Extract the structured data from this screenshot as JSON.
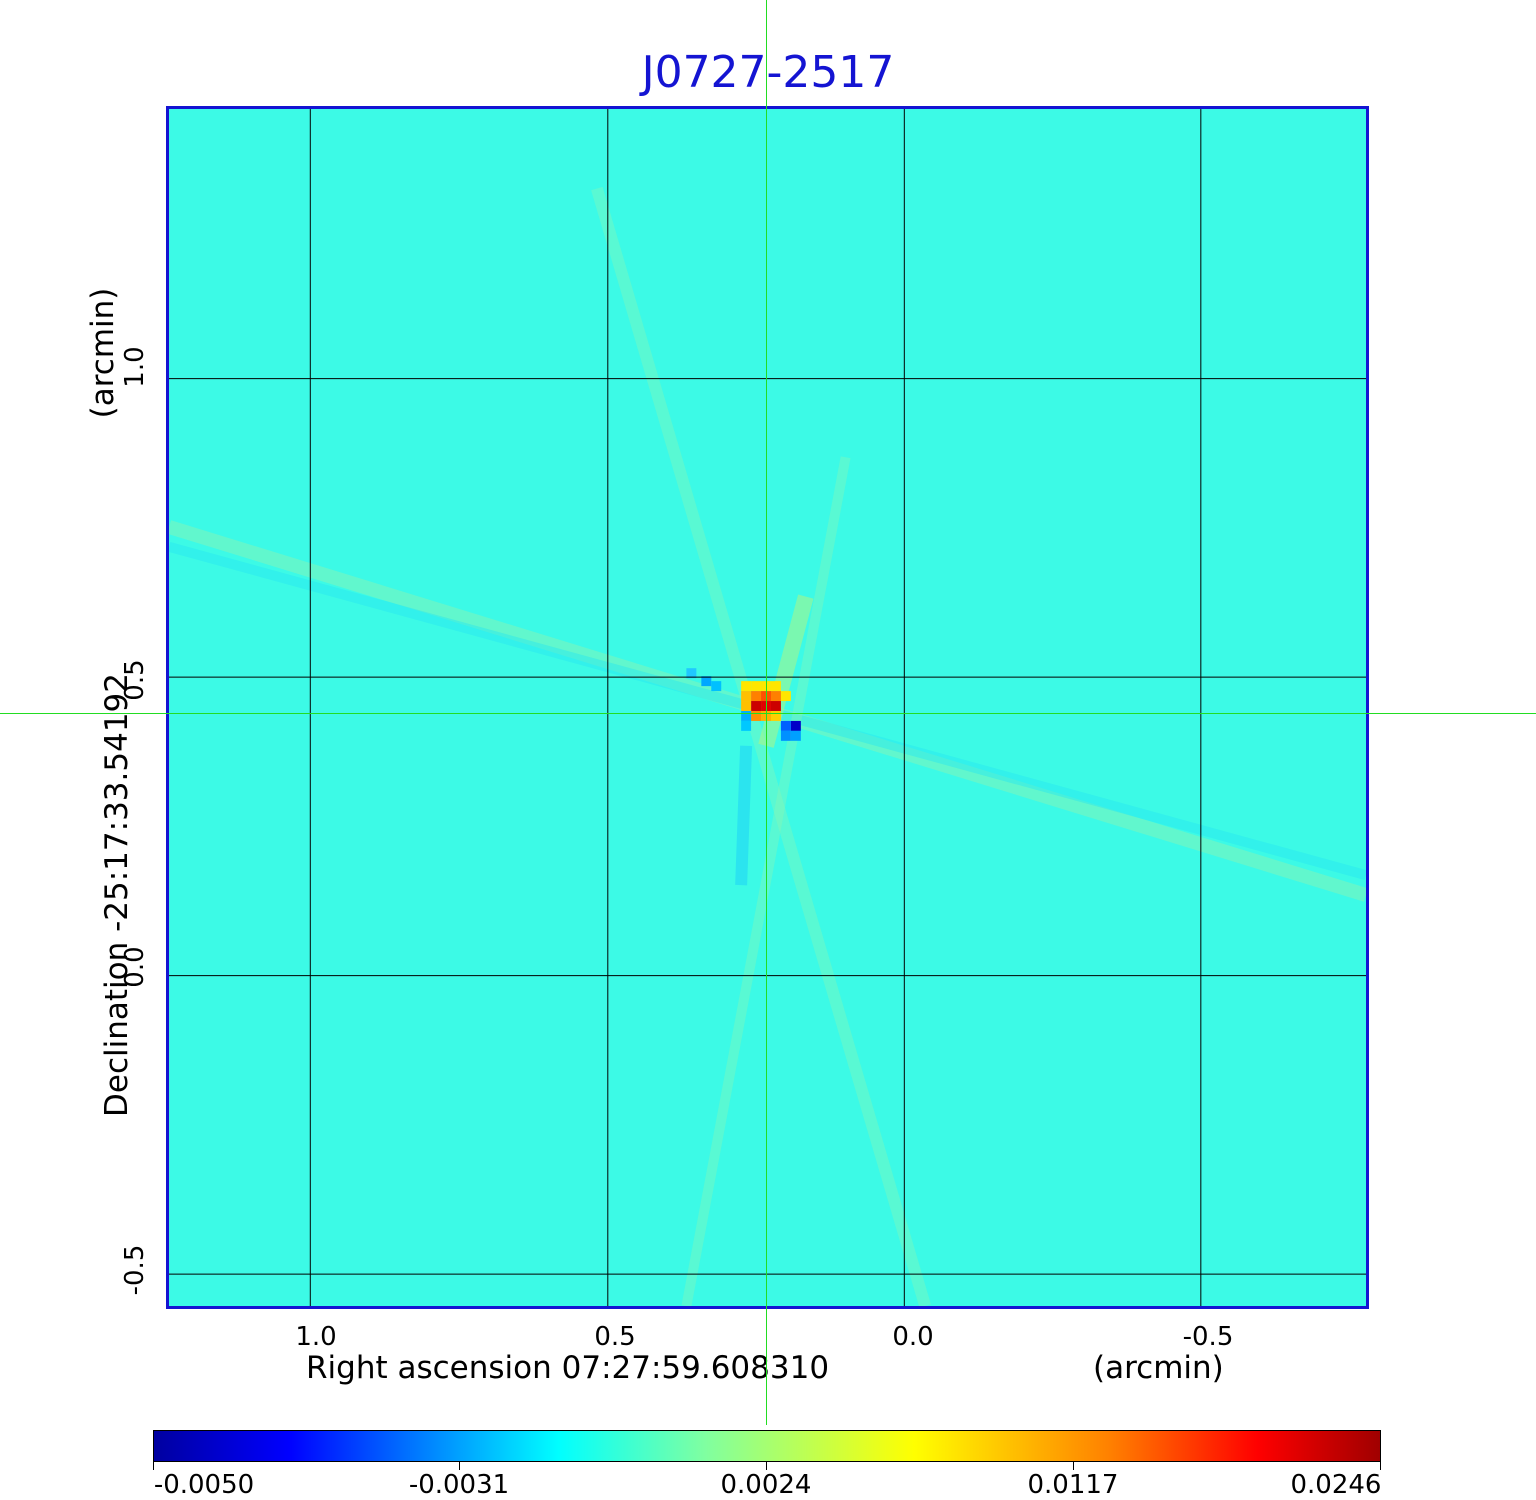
{
  "title": "J0727-2517",
  "x_axis": {
    "label": "Right ascension  07:27:59.608310",
    "unit": "(arcmin)",
    "ticks": [
      "1.0",
      "0.5",
      "0.0",
      "-0.5"
    ]
  },
  "y_axis": {
    "label": "Declination  -25:17:33.54192",
    "unit": "(arcmin)",
    "ticks": [
      "1.0",
      "0.5",
      "0.0",
      "-0.5"
    ]
  },
  "colorbar": {
    "ticks": [
      "-0.0050",
      "-0.0031",
      "0.0024",
      "0.0117",
      "0.0246"
    ],
    "colormap": "jet"
  },
  "colors": {
    "title": "#1414d2",
    "frame": "#1414d2",
    "background_field": "#3cfae6",
    "crosshair": "#22dd22",
    "grid": "#000000"
  }
}
